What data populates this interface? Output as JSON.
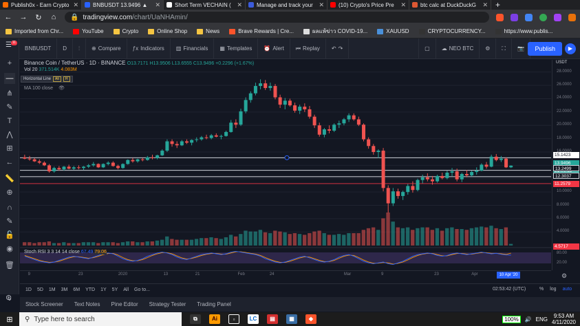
{
  "browser": {
    "tabs": [
      {
        "title": "Publish0x - Earn Crypto",
        "color": "#ff6b00",
        "active": false
      },
      {
        "title": "BNBUSDT 13.9496 ▲",
        "color": "#2962ff",
        "active": true
      },
      {
        "title": "Short Term VECHAIN (",
        "color": "#ffffff",
        "active": false
      },
      {
        "title": "Manage and track your",
        "color": "#3b5bdb",
        "active": false
      },
      {
        "title": "(10) Crypto's Price Pre",
        "color": "#ff0000",
        "active": false
      },
      {
        "title": "btc calc at DuckDuckG",
        "color": "#de5833",
        "active": false
      }
    ],
    "new_tab": "+",
    "url_host": "tradingview.com",
    "url_path": "/chart/UaNHAmin/",
    "bookmarks": [
      {
        "label": "Imported from Chr...",
        "color": "#f5c542"
      },
      {
        "label": "YouTube",
        "color": "#ff0000"
      },
      {
        "label": "Crypto",
        "color": "#f5c542"
      },
      {
        "label": "Online Shop",
        "color": "#f5c542"
      },
      {
        "label": "News",
        "color": "#f5c542"
      },
      {
        "label": "Brave Rewards | Cre...",
        "color": "#fb542b"
      },
      {
        "label": "ผลแพ้ข่าว COVID-19...",
        "color": "#dddddd"
      },
      {
        "label": "XAUUSD",
        "color": "#4a90d9"
      },
      {
        "label": "CRYPTOCURRENCY...",
        "color": "#333333"
      },
      {
        "label": "https://www.publis...",
        "color": "#333333"
      }
    ]
  },
  "toolbar": {
    "symbol": "BNBUSDT",
    "interval": "D",
    "compare": "Compare",
    "indicators": "Indicators",
    "financials": "Financials",
    "templates": "Templates",
    "alert": "Alert",
    "replay": "Replay",
    "neo": "NEO BTC",
    "publish": "Publish",
    "badge": "11"
  },
  "legend": {
    "title": "Binance Coin / TetherUS",
    "interval": "1D",
    "exchange": "BINANCE",
    "ohlc": "O13.7171  H13.9506  L13.6555  C13.9496  +0.2296 (+1.67%)",
    "vol_label": "Vol 20",
    "vol_val1": "371.514K",
    "vol_val2": "4.083M",
    "ma_label": "MA 100 close",
    "rsi_label": "Stoch RSI  3 3 14 14 close",
    "rsi_val1": "67.49",
    "rsi_val2": "79.06",
    "hl_tip": "Horizontal Line",
    "hl_key1": "Alt",
    "hl_key2": "H"
  },
  "price_axis": {
    "currency": "USDT",
    "ticks": [
      "28.0000",
      "26.0000",
      "24.0000",
      "22.0000",
      "20.0000",
      "18.0000",
      "16.0000",
      "10.0000",
      "8.0000",
      "6.0000",
      "4.0000"
    ],
    "labels": [
      {
        "text": "15.1423",
        "color": "#131722",
        "bg": "#ffffff"
      },
      {
        "text": "13.9496",
        "color": "#ffffff",
        "bg": "#26a69a"
      },
      {
        "text": "21:06:18",
        "color": "#ffffff",
        "bg": "#26a69a"
      },
      {
        "text": "13.2499",
        "color": "#ffffff",
        "bg": "#131722"
      },
      {
        "text": "12.3037",
        "color": "#ffffff",
        "bg": "#131722"
      },
      {
        "text": "11.2579",
        "color": "#ffffff",
        "bg": "#f23645"
      },
      {
        "text": "4.5717",
        "color": "#ffffff",
        "bg": "#f23645"
      }
    ],
    "rsi_ticks": [
      "80.00",
      "20.00"
    ]
  },
  "time_axis": {
    "ticks": [
      "9",
      "23",
      "2020",
      "13",
      "21",
      "Feb",
      "24",
      "Mar",
      "9",
      "23",
      "Apr"
    ],
    "date_label": "10 Apr '20"
  },
  "bottom": {
    "ranges": [
      "1D",
      "5D",
      "1M",
      "3M",
      "6M",
      "YTD",
      "1Y",
      "5Y",
      "All",
      "Go to..."
    ],
    "clock": "02:53:42 (UTC)",
    "pct": "%",
    "log": "log",
    "auto": "auto",
    "panels": [
      "Stock Screener",
      "Text Notes",
      "Pine Editor",
      "Strategy Tester",
      "Trading Panel"
    ]
  },
  "taskbar": {
    "search_placeholder": "Type here to search",
    "battery": "100%",
    "lang": "ENG",
    "time": "9:53 AM",
    "date": "4/11/2020"
  },
  "colors": {
    "up": "#26a69a",
    "down": "#ef5350",
    "accent": "#2962ff"
  },
  "chart_data": {
    "type": "candlestick",
    "title": "Binance Coin / TetherUS",
    "ylim": [
      3,
      29
    ],
    "hlines": [
      15.1423,
      13.2499,
      12.3037,
      11.2579
    ],
    "candles": [
      [
        15.2,
        15.6,
        14.9,
        15.0
      ],
      [
        15.0,
        15.4,
        14.7,
        14.9
      ],
      [
        14.9,
        15.1,
        14.5,
        14.6
      ],
      [
        14.6,
        14.9,
        14.2,
        14.4
      ],
      [
        14.4,
        14.6,
        13.9,
        14.0
      ],
      [
        14.0,
        14.2,
        12.9,
        13.1
      ],
      [
        13.1,
        13.8,
        12.9,
        13.6
      ],
      [
        13.6,
        13.9,
        13.2,
        13.4
      ],
      [
        13.4,
        13.9,
        13.2,
        13.8
      ],
      [
        13.8,
        14.1,
        13.4,
        13.5
      ],
      [
        13.5,
        13.9,
        13.3,
        13.7
      ],
      [
        13.7,
        14.0,
        13.4,
        13.6
      ],
      [
        13.6,
        13.9,
        13.3,
        13.8
      ],
      [
        13.8,
        14.2,
        13.6,
        14.0
      ],
      [
        14.0,
        14.5,
        13.8,
        14.2
      ],
      [
        14.2,
        14.3,
        13.6,
        13.7
      ],
      [
        13.7,
        14.3,
        13.6,
        14.2
      ],
      [
        14.2,
        14.6,
        14.0,
        14.4
      ],
      [
        14.4,
        14.6,
        13.8,
        13.9
      ],
      [
        13.9,
        14.1,
        13.4,
        13.6
      ],
      [
        13.6,
        14.3,
        13.5,
        14.2
      ],
      [
        14.2,
        14.9,
        14.1,
        14.8
      ],
      [
        14.8,
        15.1,
        14.4,
        14.6
      ],
      [
        14.6,
        15.0,
        14.4,
        14.9
      ],
      [
        14.9,
        15.1,
        14.6,
        14.8
      ],
      [
        14.8,
        15.4,
        14.7,
        15.2
      ],
      [
        15.2,
        15.6,
        14.9,
        15.1
      ],
      [
        15.1,
        15.6,
        14.9,
        15.5
      ],
      [
        15.5,
        16.4,
        15.4,
        16.2
      ],
      [
        16.2,
        17.9,
        16.0,
        17.6
      ],
      [
        17.6,
        17.9,
        16.8,
        17.2
      ],
      [
        17.2,
        17.6,
        16.6,
        17.0
      ],
      [
        17.0,
        17.8,
        16.9,
        17.6
      ],
      [
        17.6,
        17.9,
        17.2,
        17.4
      ],
      [
        17.4,
        17.9,
        17.0,
        17.8
      ],
      [
        17.8,
        18.2,
        17.5,
        17.9
      ],
      [
        17.9,
        18.4,
        17.7,
        18.2
      ],
      [
        18.2,
        18.6,
        17.9,
        18.1
      ],
      [
        18.1,
        18.7,
        17.9,
        18.5
      ],
      [
        18.5,
        18.8,
        18.2,
        18.3
      ],
      [
        18.3,
        18.6,
        17.9,
        18.4
      ],
      [
        18.4,
        19.2,
        18.3,
        19.0
      ],
      [
        19.0,
        20.8,
        18.9,
        20.4
      ],
      [
        20.4,
        20.9,
        19.6,
        20.1
      ],
      [
        20.1,
        22.5,
        19.9,
        22.1
      ],
      [
        22.1,
        24.2,
        21.8,
        23.8
      ],
      [
        23.8,
        25.1,
        23.4,
        24.8
      ],
      [
        24.8,
        26.4,
        24.5,
        25.9
      ],
      [
        25.9,
        26.9,
        25.4,
        26.3
      ],
      [
        26.3,
        26.8,
        25.3,
        25.6
      ],
      [
        25.6,
        26.4,
        25.2,
        25.9
      ],
      [
        25.9,
        26.2,
        23.9,
        24.2
      ],
      [
        24.2,
        24.6,
        22.6,
        23.1
      ],
      [
        23.1,
        24.1,
        22.4,
        23.7
      ],
      [
        23.7,
        24.0,
        22.8,
        23.0
      ],
      [
        23.0,
        23.4,
        21.9,
        22.2
      ],
      [
        22.2,
        23.1,
        21.7,
        22.8
      ],
      [
        22.8,
        23.3,
        22.0,
        22.4
      ],
      [
        22.4,
        22.9,
        21.0,
        21.3
      ],
      [
        21.3,
        21.6,
        19.6,
        20.0
      ],
      [
        20.0,
        20.4,
        18.3,
        18.6
      ],
      [
        18.6,
        19.6,
        18.2,
        19.4
      ],
      [
        19.4,
        20.0,
        18.8,
        19.2
      ],
      [
        19.2,
        20.3,
        19.0,
        20.1
      ],
      [
        20.1,
        20.7,
        19.6,
        20.3
      ],
      [
        20.3,
        21.1,
        20.0,
        20.9
      ],
      [
        20.9,
        21.8,
        20.5,
        21.5
      ],
      [
        21.5,
        21.8,
        20.7,
        20.9
      ],
      [
        20.9,
        21.3,
        19.9,
        20.1
      ],
      [
        20.1,
        20.3,
        17.6,
        17.9
      ],
      [
        17.9,
        18.2,
        16.5,
        16.9
      ],
      [
        16.9,
        17.2,
        15.6,
        16.0
      ],
      [
        16.0,
        16.4,
        15.1,
        16.2
      ],
      [
        16.2,
        16.6,
        10.1,
        10.6
      ],
      [
        10.6,
        11.0,
        6.9,
        8.3
      ],
      [
        8.3,
        10.6,
        7.9,
        10.1
      ],
      [
        10.1,
        10.5,
        9.0,
        9.4
      ],
      [
        9.4,
        10.2,
        8.8,
        10.0
      ],
      [
        10.0,
        11.2,
        9.6,
        10.9
      ],
      [
        10.9,
        11.6,
        9.9,
        10.3
      ],
      [
        10.3,
        12.0,
        10.1,
        11.8
      ],
      [
        11.8,
        12.6,
        11.3,
        12.2
      ],
      [
        12.2,
        12.8,
        11.6,
        11.9
      ],
      [
        11.9,
        12.4,
        11.1,
        11.6
      ],
      [
        11.6,
        12.6,
        11.4,
        12.4
      ],
      [
        12.4,
        12.9,
        11.9,
        12.1
      ],
      [
        12.1,
        13.2,
        11.9,
        12.9
      ],
      [
        12.9,
        13.6,
        12.4,
        13.1
      ],
      [
        13.1,
        13.5,
        11.6,
        11.9
      ],
      [
        11.9,
        12.9,
        11.5,
        12.7
      ],
      [
        12.7,
        13.3,
        12.2,
        12.5
      ],
      [
        12.5,
        13.2,
        12.3,
        13.0
      ],
      [
        13.0,
        13.7,
        12.6,
        13.2
      ],
      [
        13.2,
        14.3,
        13.1,
        14.1
      ],
      [
        14.1,
        14.5,
        13.5,
        13.8
      ],
      [
        13.8,
        15.6,
        13.7,
        15.3
      ],
      [
        15.3,
        15.7,
        14.6,
        14.8
      ],
      [
        14.8,
        15.4,
        14.5,
        15.0
      ],
      [
        15.0,
        15.2,
        13.6,
        13.7
      ],
      [
        13.7,
        14.0,
        13.6,
        13.95
      ]
    ],
    "volume": [
      4,
      4,
      3,
      4,
      4,
      5,
      3,
      3,
      4,
      3,
      3,
      3,
      4,
      4,
      4,
      3,
      4,
      4,
      4,
      3,
      4,
      5,
      5,
      4,
      4,
      5,
      5,
      6,
      7,
      11,
      8,
      7,
      7,
      7,
      7,
      8,
      9,
      9,
      10,
      9,
      8,
      10,
      13,
      11,
      14,
      18,
      17,
      17,
      19,
      16,
      15,
      18,
      17,
      16,
      14,
      15,
      14,
      13,
      15,
      17,
      18,
      15,
      13,
      13,
      14,
      13,
      15,
      15,
      15,
      19,
      21,
      22,
      19,
      33,
      40,
      29,
      22,
      21,
      22,
      19,
      21,
      22,
      22,
      19,
      21,
      18,
      21,
      22,
      20,
      20,
      19,
      21,
      22,
      23,
      22,
      24,
      21,
      20,
      22,
      2
    ],
    "rsi_k": [
      60,
      50,
      40,
      30,
      25,
      20,
      25,
      35,
      45,
      55,
      60,
      55,
      50,
      45,
      55,
      65,
      75,
      80,
      75,
      60,
      45,
      35,
      30,
      35,
      45,
      60,
      70,
      80,
      85,
      80,
      70,
      55,
      45,
      40,
      50,
      60,
      70,
      75,
      80,
      75,
      70,
      75,
      85,
      90,
      85,
      80,
      75,
      70,
      60,
      45,
      35,
      25,
      20,
      25,
      35,
      45,
      55,
      60,
      50,
      40,
      30,
      25,
      30,
      40,
      55,
      65,
      70,
      60,
      45,
      30,
      20,
      15,
      20,
      25,
      15,
      10,
      20,
      30,
      45,
      60,
      70,
      75,
      80,
      75,
      65,
      60,
      65,
      75,
      80,
      75,
      70,
      75,
      80,
      85,
      80,
      75,
      78,
      72,
      68,
      67
    ],
    "rsi_d": [
      65,
      55,
      45,
      35,
      28,
      23,
      25,
      30,
      40,
      50,
      57,
      57,
      53,
      48,
      52,
      60,
      70,
      77,
      77,
      67,
      52,
      40,
      33,
      33,
      40,
      52,
      65,
      75,
      82,
      82,
      75,
      62,
      50,
      43,
      47,
      55,
      65,
      72,
      77,
      77,
      73,
      73,
      80,
      87,
      87,
      83,
      78,
      73,
      65,
      52,
      40,
      30,
      23,
      23,
      30,
      40,
      50,
      57,
      55,
      45,
      35,
      28,
      28,
      35,
      48,
      60,
      67,
      65,
      52,
      37,
      25,
      18,
      18,
      22,
      20,
      13,
      17,
      25,
      38,
      53,
      65,
      73,
      78,
      77,
      70,
      63,
      63,
      70,
      77,
      77,
      73,
      73,
      78,
      82,
      82,
      78,
      78,
      75,
      71,
      79
    ]
  }
}
